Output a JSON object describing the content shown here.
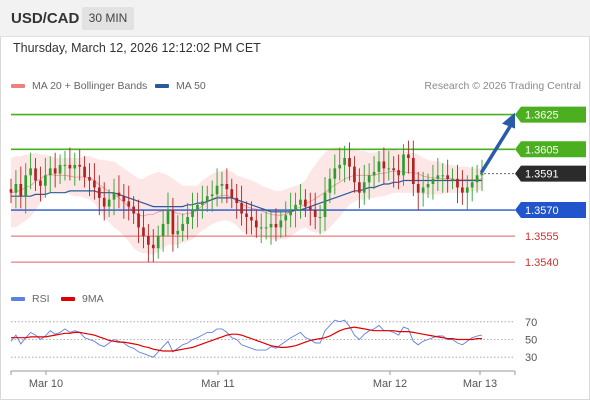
{
  "header": {
    "symbol": "USD/CAD",
    "timeframe": "30 MIN"
  },
  "timestamp": "Thursday, March 12, 2026 12:12:02 PM CET",
  "legend": {
    "bollinger": "MA 20 + Bollinger Bands",
    "ma50": "MA 50",
    "rsi": "RSI",
    "rsi_ma": "9MA"
  },
  "copyright": "Research © 2026 Trading Central",
  "colors": {
    "bollinger": "#f08080",
    "ma50": "#2a5a9b",
    "rsi": "#6080e0",
    "rsi_ma": "#e00000",
    "resistance": "#4caf20",
    "support_blue": "#2255cc",
    "support_red": "#e06060",
    "candle_up": "#2e9e2e",
    "candle_down": "#b22222",
    "arrow": "#2a5ba8"
  },
  "chart_data": [
    {
      "type": "candlestick",
      "symbol": "USD/CAD",
      "interval": "30 MIN",
      "ylim": [
        1.3532,
        1.3638
      ],
      "x_ticks": [
        "Mar 10",
        "Mar 11",
        "Mar 12",
        "Mar 13"
      ],
      "last_price": 1.3591,
      "levels": [
        {
          "value": 1.3625,
          "label": "1.3625",
          "kind": "resistance",
          "style": "green"
        },
        {
          "value": 1.3605,
          "label": "1.3605",
          "kind": "resistance",
          "style": "green"
        },
        {
          "value": 1.3591,
          "label": "1.3591",
          "kind": "last",
          "style": "dark"
        },
        {
          "value": 1.357,
          "label": "1.3570",
          "kind": "support",
          "style": "blue"
        },
        {
          "value": 1.3555,
          "label": "1.3555",
          "kind": "support",
          "style": "red"
        },
        {
          "value": 1.354,
          "label": "1.3540",
          "kind": "support",
          "style": "red"
        }
      ],
      "close": [
        1.358,
        1.3585,
        1.3578,
        1.359,
        1.3594,
        1.3587,
        1.3584,
        1.359,
        1.3594,
        1.3591,
        1.3596,
        1.3596,
        1.3594,
        1.3596,
        1.3595,
        1.3589,
        1.3587,
        1.3583,
        1.3577,
        1.3572,
        1.3576,
        1.358,
        1.3578,
        1.3575,
        1.3572,
        1.3568,
        1.356,
        1.3555,
        1.355,
        1.3548,
        1.3555,
        1.3562,
        1.357,
        1.3556,
        1.3558,
        1.3562,
        1.3566,
        1.357,
        1.3573,
        1.3575,
        1.3578,
        1.3579,
        1.3584,
        1.3585,
        1.3582,
        1.3577,
        1.3574,
        1.3568,
        1.3566,
        1.3564,
        1.356,
        1.356,
        1.356,
        1.3562,
        1.356,
        1.3564,
        1.3567,
        1.357,
        1.3573,
        1.3576,
        1.3572,
        1.357,
        1.3566,
        1.3566,
        1.358,
        1.3588,
        1.3594,
        1.3596,
        1.36,
        1.3595,
        1.3586,
        1.358,
        1.3586,
        1.359,
        1.3592,
        1.3598,
        1.3594,
        1.3594,
        1.3593,
        1.359,
        1.3602,
        1.36,
        1.3585,
        1.358,
        1.3583,
        1.3585,
        1.3588,
        1.359,
        1.359,
        1.3588,
        1.3588,
        1.3583,
        1.358,
        1.3583,
        1.3586,
        1.359,
        1.3591
      ],
      "open": [
        1.3582,
        1.358,
        1.3585,
        1.3578,
        1.359,
        1.3594,
        1.3587,
        1.3584,
        1.359,
        1.3594,
        1.3591,
        1.3596,
        1.3596,
        1.3594,
        1.3596,
        1.3595,
        1.3589,
        1.3587,
        1.3583,
        1.3577,
        1.3572,
        1.3576,
        1.358,
        1.3578,
        1.3575,
        1.3572,
        1.3568,
        1.356,
        1.3555,
        1.355,
        1.3548,
        1.3555,
        1.3562,
        1.357,
        1.3556,
        1.3558,
        1.3562,
        1.3566,
        1.357,
        1.3573,
        1.3575,
        1.3578,
        1.3579,
        1.3584,
        1.3585,
        1.3582,
        1.3577,
        1.3574,
        1.3568,
        1.3566,
        1.3564,
        1.356,
        1.356,
        1.356,
        1.3562,
        1.356,
        1.3564,
        1.3567,
        1.357,
        1.3573,
        1.3576,
        1.3572,
        1.357,
        1.3566,
        1.3566,
        1.358,
        1.3588,
        1.3594,
        1.3596,
        1.36,
        1.3595,
        1.3586,
        1.358,
        1.3586,
        1.359,
        1.3592,
        1.3598,
        1.3594,
        1.3594,
        1.3593,
        1.359,
        1.3602,
        1.36,
        1.3585,
        1.358,
        1.3583,
        1.3585,
        1.3588,
        1.359,
        1.359,
        1.3588,
        1.3588,
        1.3583,
        1.358,
        1.3583,
        1.3586,
        1.359
      ],
      "bollinger_upper": [
        1.36,
        1.3601,
        1.3601,
        1.3602,
        1.3602,
        1.3603,
        1.3602,
        1.3602,
        1.3601,
        1.36,
        1.36,
        1.36,
        1.36,
        1.36,
        1.36,
        1.3601,
        1.3601,
        1.36,
        1.3599,
        1.3599,
        1.3598,
        1.3598,
        1.3596,
        1.3594,
        1.3592,
        1.359,
        1.3588,
        1.3588,
        1.359,
        1.3591,
        1.3592,
        1.3591,
        1.359,
        1.3588,
        1.3586,
        1.3584,
        1.3584,
        1.3584,
        1.3584,
        1.3587,
        1.3589,
        1.3591,
        1.3592,
        1.3593,
        1.3593,
        1.3592,
        1.359,
        1.3589,
        1.3588,
        1.3587,
        1.3586,
        1.3584,
        1.3583,
        1.3582,
        1.3581,
        1.3581,
        1.3582,
        1.3583,
        1.3584,
        1.3585,
        1.3587,
        1.3592,
        1.3596,
        1.36,
        1.3603,
        1.3605,
        1.3606,
        1.3606,
        1.3606,
        1.3605,
        1.3605,
        1.3604,
        1.3604,
        1.3603,
        1.3603,
        1.3604,
        1.3604,
        1.3605,
        1.3605,
        1.3604,
        1.3604,
        1.3603,
        1.3603,
        1.3602,
        1.36,
        1.3599,
        1.3598,
        1.3598,
        1.3597,
        1.3596,
        1.3596,
        1.3595,
        1.3595,
        1.3595,
        1.3594,
        1.3594,
        1.3594
      ],
      "bollinger_lower": [
        1.356,
        1.356,
        1.3562,
        1.3564,
        1.3566,
        1.357,
        1.3574,
        1.3578,
        1.358,
        1.358,
        1.358,
        1.358,
        1.3579,
        1.3578,
        1.3578,
        1.3577,
        1.3576,
        1.3574,
        1.357,
        1.3566,
        1.3563,
        1.356,
        1.3558,
        1.3555,
        1.3552,
        1.3548,
        1.3546,
        1.3545,
        1.3545,
        1.3544,
        1.3546,
        1.3548,
        1.355,
        1.355,
        1.355,
        1.3551,
        1.3552,
        1.3553,
        1.3556,
        1.3558,
        1.356,
        1.3562,
        1.3563,
        1.3564,
        1.3564,
        1.3563,
        1.3561,
        1.3558,
        1.3556,
        1.3555,
        1.3555,
        1.3555,
        1.3554,
        1.3553,
        1.3553,
        1.3553,
        1.3553,
        1.3555,
        1.3557,
        1.3559,
        1.356,
        1.3558,
        1.3557,
        1.3557,
        1.3557,
        1.356,
        1.3563,
        1.3566,
        1.357,
        1.3573,
        1.3575,
        1.3576,
        1.3576,
        1.3577,
        1.3577,
        1.3578,
        1.3578,
        1.3579,
        1.358,
        1.358,
        1.358,
        1.358,
        1.358,
        1.358,
        1.3579,
        1.3579,
        1.3579,
        1.3579,
        1.3579,
        1.358,
        1.358,
        1.358,
        1.358,
        1.358,
        1.3581,
        1.3581,
        1.3582
      ],
      "ma50": [
        1.3578,
        1.3578,
        1.3578,
        1.3578,
        1.3578,
        1.3579,
        1.3579,
        1.3579,
        1.358,
        1.358,
        1.358,
        1.358,
        1.3581,
        1.3581,
        1.3581,
        1.3581,
        1.3581,
        1.3581,
        1.358,
        1.358,
        1.358,
        1.358,
        1.3579,
        1.3578,
        1.3577,
        1.3576,
        1.3575,
        1.3574,
        1.3573,
        1.3572,
        1.3572,
        1.3572,
        1.3572,
        1.3572,
        1.3572,
        1.3572,
        1.3573,
        1.3573,
        1.3574,
        1.3574,
        1.3575,
        1.3576,
        1.3577,
        1.3577,
        1.3577,
        1.3577,
        1.3576,
        1.3575,
        1.3574,
        1.3573,
        1.3572,
        1.3571,
        1.357,
        1.3569,
        1.3569,
        1.3569,
        1.3569,
        1.3569,
        1.357,
        1.357,
        1.3571,
        1.3572,
        1.3573,
        1.3574,
        1.3575,
        1.3576,
        1.3577,
        1.3578,
        1.3579,
        1.358,
        1.3581,
        1.3581,
        1.3582,
        1.3583,
        1.3583,
        1.3584,
        1.3585,
        1.3585,
        1.3586,
        1.3586,
        1.3587,
        1.3587,
        1.3587,
        1.3587,
        1.3587,
        1.3587,
        1.3587,
        1.3587,
        1.3587,
        1.3587,
        1.3587,
        1.3587,
        1.3587,
        1.3587,
        1.3587,
        1.3587,
        1.3587
      ]
    },
    {
      "type": "line",
      "name": "RSI",
      "y_ticks": [
        70,
        50,
        30
      ],
      "ylim": [
        20,
        80
      ],
      "series": [
        {
          "name": "RSI",
          "values": [
            48,
            55,
            45,
            52,
            58,
            55,
            50,
            54,
            60,
            56,
            58,
            62,
            58,
            60,
            58,
            52,
            50,
            48,
            44,
            42,
            46,
            50,
            48,
            46,
            42,
            40,
            36,
            34,
            32,
            30,
            36,
            42,
            48,
            36,
            40,
            44,
            46,
            50,
            52,
            55,
            58,
            58,
            62,
            62,
            58,
            52,
            50,
            44,
            42,
            40,
            38,
            38,
            38,
            42,
            40,
            44,
            48,
            52,
            55,
            58,
            52,
            50,
            46,
            46,
            60,
            66,
            72,
            70,
            72,
            65,
            55,
            50,
            56,
            60,
            62,
            66,
            60,
            60,
            58,
            55,
            64,
            62,
            48,
            44,
            48,
            50,
            52,
            54,
            54,
            50,
            50,
            46,
            44,
            48,
            52,
            54,
            55
          ]
        },
        {
          "name": "9MA",
          "values": [
            52,
            52,
            52,
            52,
            53,
            53,
            53,
            53,
            54,
            55,
            56,
            57,
            57,
            58,
            58,
            57,
            56,
            55,
            53,
            51,
            49,
            48,
            47,
            47,
            46,
            45,
            44,
            42,
            41,
            39,
            38,
            37,
            37,
            37,
            38,
            39,
            40,
            41,
            43,
            45,
            47,
            49,
            51,
            53,
            55,
            56,
            56,
            55,
            53,
            51,
            49,
            47,
            45,
            43,
            42,
            41,
            41,
            42,
            43,
            45,
            47,
            49,
            50,
            51,
            52,
            54,
            57,
            60,
            62,
            63,
            64,
            63,
            62,
            61,
            60,
            60,
            60,
            60,
            60,
            59,
            59,
            59,
            58,
            57,
            56,
            55,
            54,
            53,
            52,
            51,
            51,
            50,
            50,
            50,
            50,
            51,
            51
          ]
        }
      ]
    }
  ]
}
